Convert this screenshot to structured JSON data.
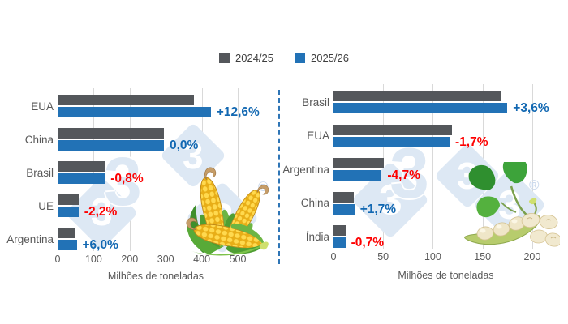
{
  "legend": {
    "items": [
      {
        "label": "2024/25",
        "color": "#54575b"
      },
      {
        "label": "2025/26",
        "color": "#2272b6"
      }
    ]
  },
  "chart_data": [
    {
      "type": "bar",
      "orientation": "horizontal",
      "title": "",
      "product_icon": "corn",
      "categories": [
        "EUA",
        "China",
        "Brasil",
        "UE",
        "Argentina"
      ],
      "series": [
        {
          "name": "2024/25",
          "values": [
            377.6,
            295,
            132,
            59.3,
            50
          ]
        },
        {
          "name": "2025/26",
          "values": [
            425.3,
            295,
            131,
            58,
            53
          ]
        }
      ],
      "change_labels": [
        "+12,6%",
        "0,0%",
        "-0,8%",
        "-2,2%",
        "+6,0%"
      ],
      "xlabel": "Milhões de toneladas",
      "ticks": [
        0,
        100,
        200,
        300,
        400,
        500
      ],
      "xlim": [
        0,
        545
      ],
      "grid": "vertical",
      "legend_position": "top"
    },
    {
      "type": "bar",
      "orientation": "horizontal",
      "title": "",
      "product_icon": "soybean",
      "categories": [
        "Brasil",
        "EUA",
        "Argentina",
        "China",
        "Índia"
      ],
      "series": [
        {
          "name": "2024/25",
          "values": [
            169,
            118.8,
            50.9,
            20.7,
            12
          ]
        },
        {
          "name": "2025/26",
          "values": [
            175,
            116.8,
            48.5,
            21,
            11.9
          ]
        }
      ],
      "change_labels": [
        "+3,6%",
        "-1,7%",
        "-4,7%",
        "+1,7%",
        "-0,7%"
      ],
      "xlabel": "Milhões de toneladas",
      "ticks": [
        0,
        50,
        100,
        150,
        200
      ],
      "xlim": [
        0,
        205
      ],
      "grid": "vertical",
      "legend_position": "top"
    }
  ],
  "watermark": {
    "glyph": "3",
    "registered": "®"
  },
  "colors": {
    "bar_2024_25": "#54575b",
    "bar_2025_26": "#2272b6",
    "change_positive": "#1268b2",
    "change_negative": "#fe0000",
    "category_label": "#595959",
    "tick_label": "#595959",
    "grid_line": "#d9d9d9",
    "divider": "#2e75b6",
    "watermark": "#dde8f4"
  }
}
